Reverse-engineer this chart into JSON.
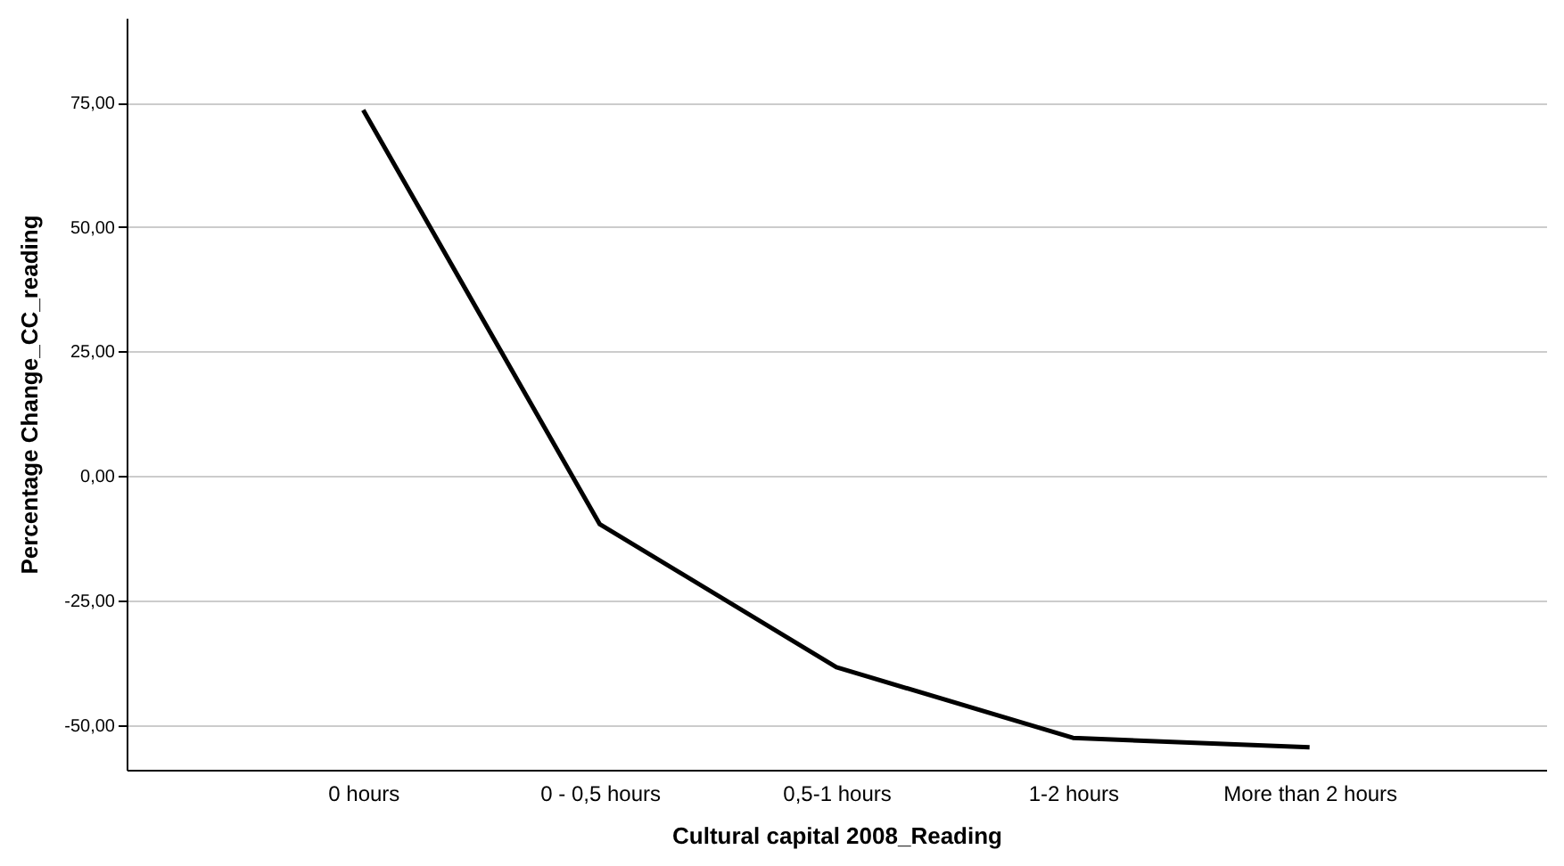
{
  "chart_data": {
    "type": "line",
    "xlabel": "Cultural capital 2008_Reading",
    "ylabel": "Percentage Change_CC_reading",
    "categories": [
      "0 hours",
      "0 - 0,5 hours",
      "0,5-1 hours",
      "1-2 hours",
      "More than 2 hours"
    ],
    "series": [
      {
        "color": "#000000",
        "values": [
          73.5,
          -9.7,
          -38.4,
          -52.6,
          -54.5
        ]
      }
    ],
    "ylim": [
      -59,
      92
    ],
    "yticks": [
      {
        "value": -50,
        "label": "-50,00"
      },
      {
        "value": -25,
        "label": "-25,00"
      },
      {
        "value": 0,
        "label": "0,00"
      },
      {
        "value": 25,
        "label": "25,00"
      },
      {
        "value": 50,
        "label": "50,00"
      },
      {
        "value": 75,
        "label": "75,00"
      }
    ],
    "grid": "y",
    "marker": "none",
    "line_style": "solid"
  }
}
